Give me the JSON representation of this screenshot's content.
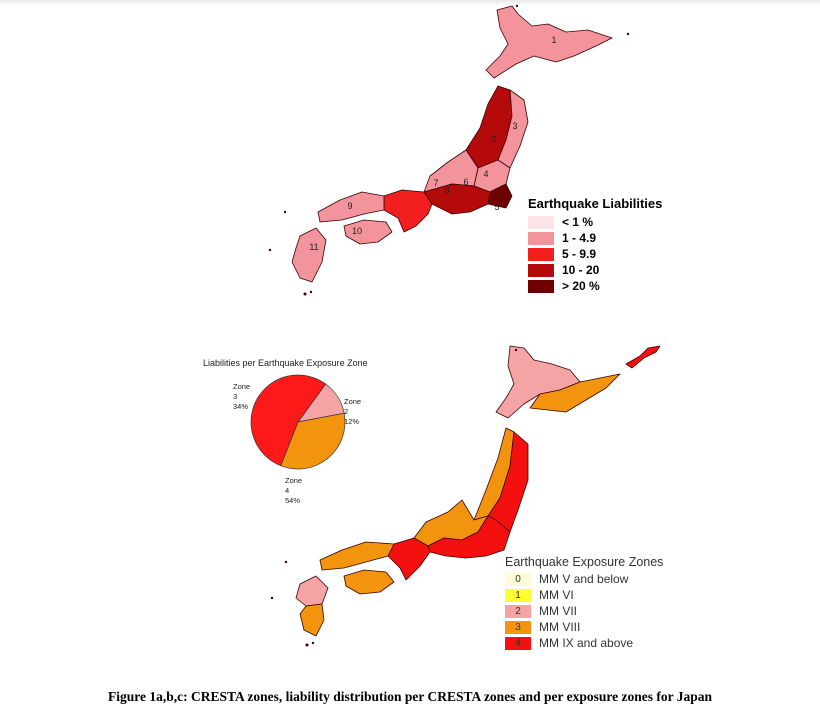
{
  "map1": {
    "zone_numbers": [
      "1",
      "2",
      "3",
      "4",
      "5",
      "6",
      "7",
      "8",
      "9",
      "10",
      "11"
    ],
    "legend": {
      "title": "Earthquake Liabilities",
      "items": [
        {
          "label": "< 1 %",
          "color": "#fbe3e6"
        },
        {
          "label": "1 - 4.9",
          "color": "#f3939b"
        },
        {
          "label": "5 - 9.9",
          "color": "#f21f1f"
        },
        {
          "label": "10 - 20",
          "color": "#b40a0a"
        },
        {
          "label": "> 20 %",
          "color": "#6e0000"
        }
      ]
    }
  },
  "pie": {
    "title": "Liabilities per Earthquake Exposure Zone",
    "slices": [
      {
        "zone": "Zone 2",
        "percent": "12%",
        "value": 12,
        "color": "#f4a4a4"
      },
      {
        "zone": "Zone 3",
        "percent": "34%",
        "value": 34,
        "color": "#f2940e"
      },
      {
        "zone": "Zone 4",
        "percent": "54%",
        "value": 54,
        "color": "#ff1a1a"
      }
    ]
  },
  "map2": {
    "legend": {
      "title": "Earthquake Exposure Zones",
      "items": [
        {
          "code": "0",
          "label": "MM V and below",
          "color": "#fffbd6"
        },
        {
          "code": "1",
          "label": "MM VI",
          "color": "#ffff33"
        },
        {
          "code": "2",
          "label": "MM VII",
          "color": "#f4a4a4"
        },
        {
          "code": "3",
          "label": "MM VIII",
          "color": "#f2940e"
        },
        {
          "code": "4",
          "label": "MM IX and above",
          "color": "#f51010"
        }
      ]
    }
  },
  "caption": "Figure  1a,b,c: CRESTA zones, liability distribution per CRESTA zones and per exposure zones for Japan"
}
